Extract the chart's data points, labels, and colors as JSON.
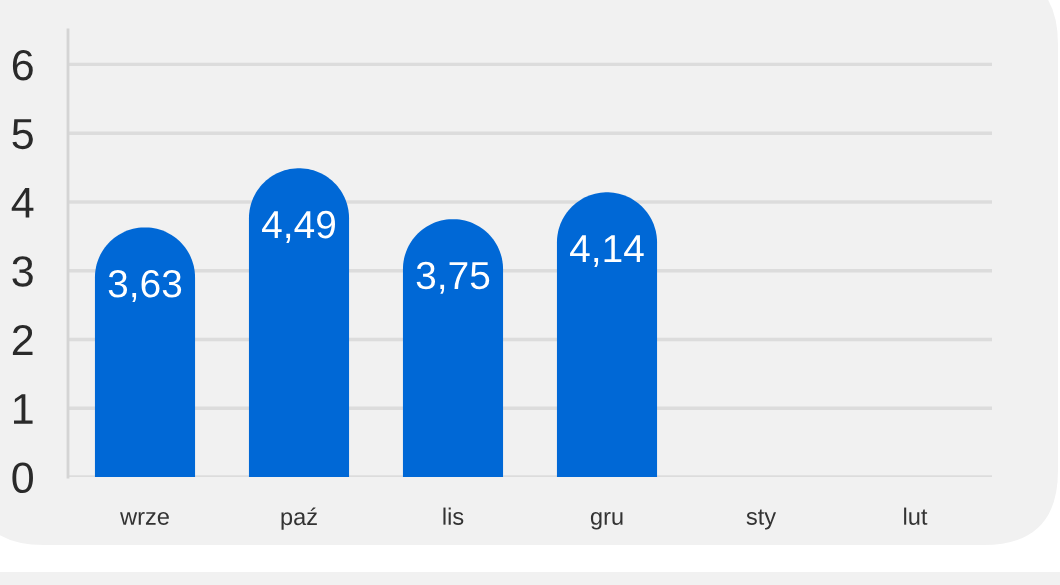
{
  "chart_data": {
    "type": "bar",
    "categories": [
      "wrze",
      "paź",
      "lis",
      "gru",
      "sty",
      "lut"
    ],
    "values": [
      3.63,
      4.49,
      3.75,
      4.14,
      null,
      null
    ],
    "value_labels": [
      "3,63",
      "4,49",
      "3,75",
      "4,14",
      null,
      null
    ],
    "color": "#0068d6",
    "ylim": [
      0,
      6.5
    ],
    "yticks": [
      0,
      1,
      2,
      3,
      4,
      5,
      6
    ],
    "grid": "y"
  }
}
